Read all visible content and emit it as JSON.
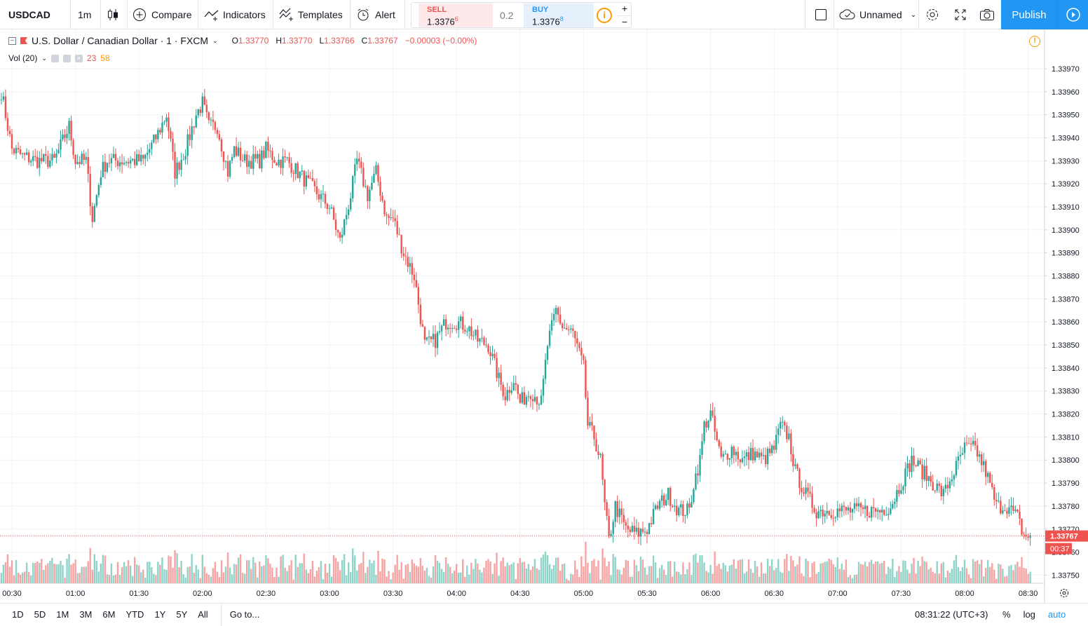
{
  "toolbar": {
    "symbol": "USDCAD",
    "interval": "1m",
    "compare": "Compare",
    "indicators": "Indicators",
    "templates": "Templates",
    "alert": "Alert",
    "sell_label": "SELL",
    "sell_price": "1.3376",
    "sell_price_sup": "6",
    "spread": "0.2",
    "buy_label": "BUY",
    "buy_price": "1.3376",
    "buy_price_sup": "8",
    "layout_name": "Unnamed",
    "publish": "Publish"
  },
  "legend": {
    "title": "U.S. Dollar / Canadian Dollar · 1 · FXCM",
    "o_label": "O",
    "o": "1.33770",
    "h_label": "H",
    "h": "1.33770",
    "l_label": "L",
    "l": "1.33766",
    "c_label": "C",
    "c": "1.33767",
    "change": "−0.00003 (−0.00%)",
    "vol_name": "Vol (20)",
    "vol_val1": "23",
    "vol_val2": "58"
  },
  "bottom": {
    "ranges": [
      "1D",
      "5D",
      "1M",
      "3M",
      "6M",
      "YTD",
      "1Y",
      "5Y",
      "All"
    ],
    "goto": "Go to...",
    "clock": "08:31:22 (UTC+3)",
    "percent": "%",
    "log": "log",
    "auto": "auto"
  },
  "colors": {
    "up": "#26a69a",
    "down": "#ef5350",
    "vol_up": "#8fd3c9",
    "vol_down": "#f5a3a3",
    "accent": "#2196f3"
  },
  "chart_data": {
    "type": "candlestick",
    "symbol": "USDCAD",
    "title": "U.S. Dollar / Canadian Dollar · 1 · FXCM",
    "x_ticks": [
      "00:30",
      "01:00",
      "01:30",
      "02:00",
      "02:30",
      "03:00",
      "03:30",
      "04:00",
      "04:30",
      "05:00",
      "05:30",
      "06:00",
      "06:30",
      "07:00",
      "07:30",
      "08:00",
      "08:30"
    ],
    "y_ticks": [
      "1.33970",
      "1.33960",
      "1.33950",
      "1.33940",
      "1.33930",
      "1.33920",
      "1.33910",
      "1.33900",
      "1.33890",
      "1.33880",
      "1.33870",
      "1.33860",
      "1.33850",
      "1.33840",
      "1.33830",
      "1.33820",
      "1.33810",
      "1.33800",
      "1.33790",
      "1.33780",
      "1.33770",
      "1.33760",
      "1.33750"
    ],
    "ylim": [
      1.33748,
      1.33977
    ],
    "last_price": "1.33767",
    "countdown": "00:37",
    "price_path": [
      [
        "00:25",
        1.3396
      ],
      [
        "00:30",
        1.33935
      ],
      [
        "00:35",
        1.33932
      ],
      [
        "00:42",
        1.3393
      ],
      [
        "00:50",
        1.3393
      ],
      [
        "00:57",
        1.33945
      ],
      [
        "01:00",
        1.3393
      ],
      [
        "01:05",
        1.3393
      ],
      [
        "01:08",
        1.33905
      ],
      [
        "01:12",
        1.33925
      ],
      [
        "01:15",
        1.3393
      ],
      [
        "01:25",
        1.3393
      ],
      [
        "01:32",
        1.3393
      ],
      [
        "01:38",
        1.3394
      ],
      [
        "01:43",
        1.3395
      ],
      [
        "01:47",
        1.33925
      ],
      [
        "01:52",
        1.33935
      ],
      [
        "01:57",
        1.3395
      ],
      [
        "02:00",
        1.33955
      ],
      [
        "02:03",
        1.33945
      ],
      [
        "02:07",
        1.33945
      ],
      [
        "02:12",
        1.33925
      ],
      [
        "02:15",
        1.33935
      ],
      [
        "02:20",
        1.3393
      ],
      [
        "02:27",
        1.3393
      ],
      [
        "02:30",
        1.33935
      ],
      [
        "02:35",
        1.3393
      ],
      [
        "02:40",
        1.3393
      ],
      [
        "02:45",
        1.33925
      ],
      [
        "02:50",
        1.3392
      ],
      [
        "02:55",
        1.33915
      ],
      [
        "03:00",
        1.3391
      ],
      [
        "03:05",
        1.33895
      ],
      [
        "03:10",
        1.33915
      ],
      [
        "03:13",
        1.3393
      ],
      [
        "03:18",
        1.33915
      ],
      [
        "03:22",
        1.33925
      ],
      [
        "03:27",
        1.33905
      ],
      [
        "03:30",
        1.33905
      ],
      [
        "03:35",
        1.3389
      ],
      [
        "03:40",
        1.3388
      ],
      [
        "03:45",
        1.3385
      ],
      [
        "03:50",
        1.33852
      ],
      [
        "03:55",
        1.3386
      ],
      [
        "04:00",
        1.3386
      ],
      [
        "04:05",
        1.33858
      ],
      [
        "04:10",
        1.33852
      ],
      [
        "04:15",
        1.3385
      ],
      [
        "04:20",
        1.33835
      ],
      [
        "04:23",
        1.33828
      ],
      [
        "04:27",
        1.33835
      ],
      [
        "04:30",
        1.33825
      ],
      [
        "04:35",
        1.3383
      ],
      [
        "04:40",
        1.33825
      ],
      [
        "04:43",
        1.3385
      ],
      [
        "04:47",
        1.33865
      ],
      [
        "04:50",
        1.33858
      ],
      [
        "04:55",
        1.33855
      ],
      [
        "05:00",
        1.3384
      ],
      [
        "05:02",
        1.33815
      ],
      [
        "05:05",
        1.3381
      ],
      [
        "05:08",
        1.338
      ],
      [
        "05:10",
        1.3378
      ],
      [
        "05:12",
        1.33765
      ],
      [
        "05:15",
        1.3378
      ],
      [
        "05:20",
        1.3377
      ],
      [
        "05:25",
        1.33768
      ],
      [
        "05:30",
        1.3377
      ],
      [
        "05:35",
        1.3378
      ],
      [
        "05:40",
        1.33785
      ],
      [
        "05:45",
        1.33778
      ],
      [
        "05:50",
        1.33778
      ],
      [
        "05:52",
        1.3379
      ],
      [
        "05:55",
        1.338
      ],
      [
        "05:57",
        1.33815
      ],
      [
        "06:00",
        1.3382
      ],
      [
        "06:05",
        1.338
      ],
      [
        "06:10",
        1.33805
      ],
      [
        "06:15",
        1.338
      ],
      [
        "06:20",
        1.33803
      ],
      [
        "06:25",
        1.338
      ],
      [
        "06:30",
        1.33805
      ],
      [
        "06:33",
        1.33815
      ],
      [
        "06:37",
        1.3381
      ],
      [
        "06:40",
        1.33795
      ],
      [
        "06:45",
        1.33785
      ],
      [
        "06:50",
        1.33778
      ],
      [
        "06:55",
        1.33778
      ],
      [
        "07:00",
        1.33778
      ],
      [
        "07:05",
        1.33778
      ],
      [
        "07:10",
        1.33778
      ],
      [
        "07:15",
        1.33778
      ],
      [
        "07:20",
        1.33778
      ],
      [
        "07:25",
        1.3378
      ],
      [
        "07:30",
        1.3379
      ],
      [
        "07:35",
        1.338
      ],
      [
        "07:40",
        1.33795
      ],
      [
        "07:45",
        1.3379
      ],
      [
        "07:50",
        1.33785
      ],
      [
        "07:55",
        1.33795
      ],
      [
        "08:00",
        1.33805
      ],
      [
        "08:05",
        1.33805
      ],
      [
        "08:10",
        1.33795
      ],
      [
        "08:15",
        1.3378
      ],
      [
        "08:20",
        1.3378
      ],
      [
        "08:25",
        1.33775
      ],
      [
        "08:28",
        1.33767
      ],
      [
        "08:31",
        1.33767
      ]
    ]
  }
}
